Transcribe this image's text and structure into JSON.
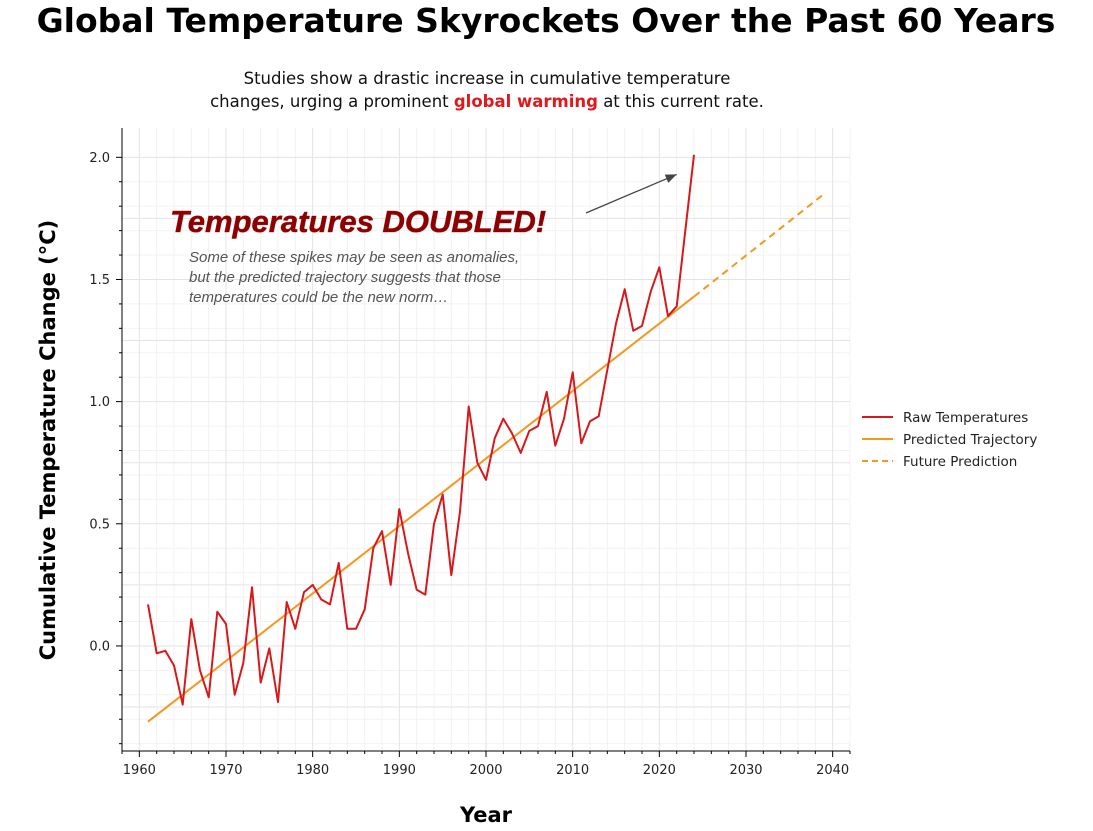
{
  "chart_data": {
    "type": "line",
    "title": "Global Temperature Skyrockets Over the Past 60 Years",
    "subtitle": {
      "line1": "Studies show a drastic increase in cumulative temperature",
      "line2_before": "changes, urging a prominent ",
      "line2_highlight": "global warming",
      "line2_after": " at this current rate."
    },
    "xlabel": "Year",
    "ylabel": "Cumulative Temperature Change (°C)",
    "xlim": [
      1958,
      2042
    ],
    "ylim": [
      -0.43,
      2.12
    ],
    "x_ticks": [
      1960,
      1970,
      1980,
      1990,
      2000,
      2010,
      2020,
      2030,
      2040
    ],
    "y_ticks": [
      0.0,
      0.5,
      1.0,
      1.5,
      2.0
    ],
    "grid": true,
    "legend_position": "right",
    "series": [
      {
        "name": "Raw Temperatures",
        "color": "#d7191c",
        "style": "solid",
        "x": [
          1961,
          1962,
          1963,
          1964,
          1965,
          1966,
          1967,
          1968,
          1969,
          1970,
          1971,
          1972,
          1973,
          1974,
          1975,
          1976,
          1977,
          1978,
          1979,
          1980,
          1981,
          1982,
          1983,
          1984,
          1985,
          1986,
          1987,
          1988,
          1989,
          1990,
          1991,
          1992,
          1993,
          1994,
          1995,
          1996,
          1997,
          1998,
          1999,
          2000,
          2001,
          2002,
          2003,
          2004,
          2005,
          2006,
          2007,
          2008,
          2009,
          2010,
          2011,
          2012,
          2013,
          2014,
          2015,
          2016,
          2017,
          2018,
          2019,
          2020,
          2021,
          2022,
          2023,
          2024
        ],
        "y": [
          0.17,
          -0.03,
          -0.02,
          -0.08,
          -0.24,
          0.11,
          -0.1,
          -0.21,
          0.14,
          0.09,
          -0.2,
          -0.07,
          0.24,
          -0.15,
          -0.01,
          -0.23,
          0.18,
          0.07,
          0.22,
          0.25,
          0.19,
          0.17,
          0.34,
          0.07,
          0.07,
          0.15,
          0.4,
          0.47,
          0.25,
          0.56,
          0.38,
          0.23,
          0.21,
          0.5,
          0.62,
          0.29,
          0.55,
          0.98,
          0.75,
          0.68,
          0.85,
          0.93,
          0.87,
          0.79,
          0.88,
          0.9,
          1.04,
          0.82,
          0.93,
          1.12,
          0.83,
          0.92,
          0.94,
          1.13,
          1.32,
          1.46,
          1.29,
          1.31,
          1.45,
          1.55,
          1.35,
          1.39,
          1.7,
          2.01
        ]
      },
      {
        "name": "Predicted Trajectory",
        "color": "#f5961d",
        "style": "solid",
        "x": [
          1961,
          2024
        ],
        "y": [
          -0.31,
          1.43
        ]
      },
      {
        "name": "Future Prediction",
        "color": "#f5961d",
        "style": "dashed",
        "x": [
          2024,
          2039
        ],
        "y": [
          1.43,
          1.85
        ]
      }
    ],
    "annotation": {
      "title": "Temperatures DOUBLED!",
      "body": [
        "Some of these spikes may be seen as anomalies,",
        "but the predicted trajectory suggests that those",
        "temperatures could be the new norm…"
      ],
      "arrow_target": [
        2022,
        1.93
      ]
    }
  }
}
